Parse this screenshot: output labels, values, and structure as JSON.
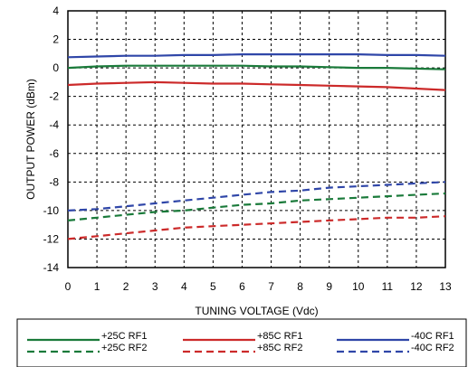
{
  "chart_data": {
    "type": "line",
    "title": "",
    "xlabel": "TUNING VOLTAGE (Vdc)",
    "ylabel": "OUTPUT POWER (dBm)",
    "xlim": [
      0,
      13
    ],
    "ylim": [
      -14,
      4
    ],
    "xticks": [
      0,
      1,
      2,
      3,
      4,
      5,
      6,
      7,
      8,
      9,
      10,
      11,
      12,
      13
    ],
    "yticks": [
      4,
      2,
      0,
      -2,
      -4,
      -6,
      -8,
      -10,
      -12,
      -14
    ],
    "grid": true,
    "grid_style": "dashed",
    "legend_position": "bottom",
    "x": [
      0,
      1,
      2,
      3,
      4,
      5,
      6,
      7,
      8,
      9,
      10,
      11,
      12,
      13
    ],
    "series": [
      {
        "name": "+25C RF1",
        "color": "#1a7a3a",
        "dash": false,
        "values": [
          0.0,
          0.1,
          0.15,
          0.15,
          0.15,
          0.15,
          0.15,
          0.1,
          0.1,
          0.05,
          0.0,
          0.0,
          -0.05,
          -0.1
        ]
      },
      {
        "name": "+25C RF2",
        "color": "#1a7a3a",
        "dash": true,
        "values": [
          -10.7,
          -10.5,
          -10.3,
          -10.1,
          -10.0,
          -9.8,
          -9.6,
          -9.5,
          -9.3,
          -9.2,
          -9.1,
          -9.0,
          -8.9,
          -8.8
        ]
      },
      {
        "name": "+85C RF1",
        "color": "#cc2a2a",
        "dash": false,
        "values": [
          -1.2,
          -1.1,
          -1.05,
          -1.0,
          -1.05,
          -1.1,
          -1.1,
          -1.15,
          -1.2,
          -1.25,
          -1.3,
          -1.35,
          -1.45,
          -1.55
        ]
      },
      {
        "name": "+85C RF2",
        "color": "#cc2a2a",
        "dash": true,
        "values": [
          -12.0,
          -11.8,
          -11.6,
          -11.4,
          -11.2,
          -11.1,
          -11.0,
          -10.9,
          -10.8,
          -10.7,
          -10.6,
          -10.5,
          -10.5,
          -10.4
        ]
      },
      {
        "name": "-40C RF1",
        "color": "#2f46a8",
        "dash": false,
        "values": [
          0.75,
          0.8,
          0.85,
          0.85,
          0.9,
          0.9,
          0.95,
          0.95,
          0.95,
          0.95,
          0.95,
          0.9,
          0.9,
          0.85
        ]
      },
      {
        "name": "-40C RF2",
        "color": "#2f46a8",
        "dash": true,
        "values": [
          -10.0,
          -9.9,
          -9.7,
          -9.5,
          -9.3,
          -9.1,
          -8.9,
          -8.7,
          -8.6,
          -8.4,
          -8.3,
          -8.2,
          -8.1,
          -8.0
        ]
      }
    ]
  }
}
